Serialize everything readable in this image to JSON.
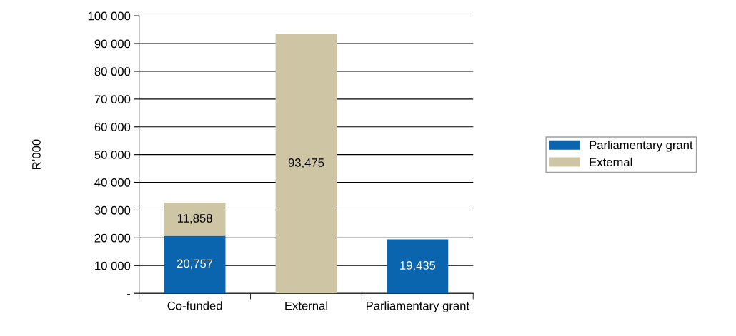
{
  "chart_data": {
    "type": "bar",
    "stacked": true,
    "ylabel": "R’000",
    "categories": [
      "Co-funded",
      "External",
      "Parliamentary grant"
    ],
    "series": [
      {
        "name": "Parliamentary grant",
        "color": "#0b64ae",
        "values": [
          20757,
          null,
          19435
        ],
        "value_labels": [
          "20,757",
          null,
          "19,435"
        ]
      },
      {
        "name": "External",
        "color": "#cdc5a3",
        "values": [
          11858,
          93475,
          null
        ],
        "value_labels": [
          "11,858",
          "93,475",
          null
        ]
      }
    ],
    "ylim": [
      0,
      100000
    ],
    "yticks": [
      {
        "value": 0,
        "label": "-"
      },
      {
        "value": 10000,
        "label": "10 000"
      },
      {
        "value": 20000,
        "label": "20 000"
      },
      {
        "value": 30000,
        "label": "30 000"
      },
      {
        "value": 40000,
        "label": "40 000"
      },
      {
        "value": 50000,
        "label": "50 000"
      },
      {
        "value": 60000,
        "label": "60 000"
      },
      {
        "value": 70000,
        "label": "70 000"
      },
      {
        "value": 80000,
        "label": "80 000"
      },
      {
        "value": 90000,
        "label": "90 000"
      },
      {
        "value": 100000,
        "label": "100 000"
      }
    ],
    "grid": "y",
    "legend": "right"
  }
}
